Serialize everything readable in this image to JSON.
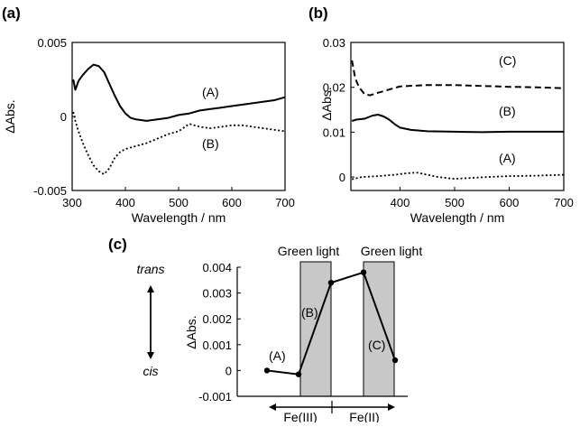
{
  "chart_data": [
    {
      "panel": "(a)",
      "type": "line",
      "xlabel": "Wavelength / nm",
      "ylabel": "ΔAbs.",
      "xlim": [
        300,
        700
      ],
      "ylim": [
        -0.005,
        0.005
      ],
      "x_ticks": [
        "300",
        "400",
        "500",
        "600",
        "700"
      ],
      "y_ticks": [
        "-0.005",
        "0",
        "0.005"
      ],
      "series": [
        {
          "name": "(A)",
          "style": "solid",
          "x": [
            302,
            306,
            312,
            320,
            330,
            340,
            350,
            360,
            370,
            380,
            390,
            400,
            410,
            420,
            440,
            460,
            480,
            500,
            520,
            540,
            560,
            580,
            600,
            620,
            640,
            660,
            680,
            700
          ],
          "y": [
            0.0025,
            0.0018,
            0.0024,
            0.0028,
            0.0032,
            0.0035,
            0.0034,
            0.003,
            0.0022,
            0.0014,
            0.0007,
            0.0002,
            -0.0001,
            -0.0002,
            -0.0003,
            -0.0002,
            -0.0001,
            0.0001,
            0.0002,
            0.0004,
            0.0005,
            0.0006,
            0.0007,
            0.0008,
            0.0009,
            0.001,
            0.0011,
            0.0013
          ]
        },
        {
          "name": "(B)",
          "style": "dotted",
          "x": [
            302,
            306,
            310,
            320,
            330,
            340,
            350,
            360,
            370,
            380,
            390,
            400,
            420,
            440,
            460,
            480,
            500,
            520,
            540,
            560,
            580,
            600,
            620,
            640,
            660,
            680,
            700
          ],
          "y": [
            0.0003,
            -0.0003,
            -0.0008,
            -0.0018,
            -0.0026,
            -0.0033,
            -0.0037,
            -0.0039,
            -0.0035,
            -0.0028,
            -0.0024,
            -0.0022,
            -0.002,
            -0.0018,
            -0.0015,
            -0.0012,
            -0.001,
            -0.0005,
            -0.0007,
            -0.0008,
            -0.0007,
            -0.0006,
            -0.0006,
            -0.0007,
            -0.0008,
            -0.0009,
            -0.001
          ]
        }
      ]
    },
    {
      "panel": "(b)",
      "type": "line",
      "xlabel": "Wavelength / nm",
      "ylabel": "ΔAbs.",
      "xlim": [
        310,
        700
      ],
      "ylim": [
        -0.003,
        0.03
      ],
      "x_ticks": [
        "400",
        "500",
        "600",
        "700"
      ],
      "y_ticks": [
        "0",
        "0.01",
        "0.02",
        "0.03"
      ],
      "series": [
        {
          "name": "(C)",
          "style": "dashed",
          "x": [
            312,
            318,
            325,
            335,
            345,
            360,
            380,
            400,
            450,
            500,
            550,
            600,
            650,
            700
          ],
          "y": [
            0.026,
            0.022,
            0.02,
            0.0185,
            0.0182,
            0.0188,
            0.0195,
            0.0202,
            0.0205,
            0.0205,
            0.0203,
            0.0201,
            0.02,
            0.0198
          ]
        },
        {
          "name": "(B)",
          "style": "solid",
          "x": [
            312,
            320,
            335,
            350,
            360,
            370,
            380,
            390,
            400,
            420,
            450,
            500,
            550,
            600,
            650,
            700
          ],
          "y": [
            0.0125,
            0.0128,
            0.013,
            0.0137,
            0.0139,
            0.0135,
            0.0128,
            0.0118,
            0.011,
            0.0105,
            0.0102,
            0.0101,
            0.01,
            0.0101,
            0.0101,
            0.0101
          ]
        },
        {
          "name": "(A)",
          "style": "dotted",
          "x": [
            312,
            330,
            360,
            390,
            410,
            430,
            450,
            470,
            500,
            530,
            560,
            600,
            650,
            700
          ],
          "y": [
            -0.0005,
            0,
            0.0002,
            0.0005,
            0.0008,
            0.001,
            0.0005,
            0,
            -0.0004,
            -0.0002,
            0,
            0.0002,
            0.0003,
            0.0005
          ]
        }
      ]
    },
    {
      "panel": "(c)",
      "type": "line",
      "ylabel": "ΔAbs.",
      "ylim": [
        -0.001,
        0.004
      ],
      "y_ticks": [
        "-0.001",
        "0",
        "0.001",
        "0.002",
        "0.003",
        "0.004"
      ],
      "shaded_label": "Green light",
      "points": [
        {
          "label": "",
          "y": 0.0
        },
        {
          "label": "(A)",
          "y": -0.00015
        },
        {
          "label": "(B)",
          "y": 0.0034
        },
        {
          "label": "",
          "y": 0.0038
        },
        {
          "label": "(C)",
          "y": 0.0004
        }
      ],
      "top_label": "trans",
      "bottom_label": "cis",
      "bottom_arrows": [
        "Fe(III)",
        "Fe(II)"
      ]
    }
  ]
}
